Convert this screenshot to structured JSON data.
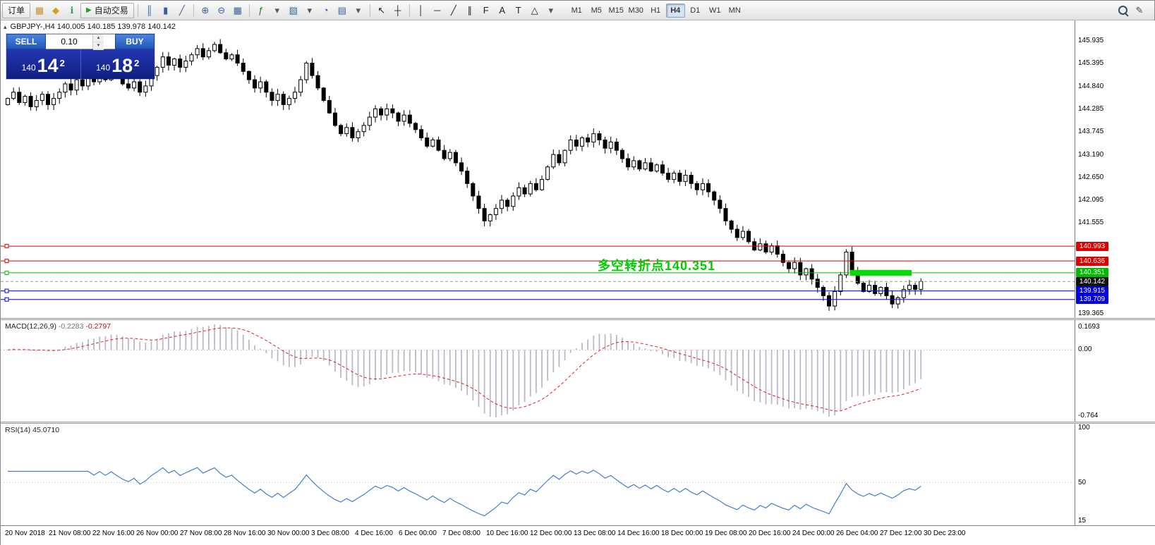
{
  "toolbar": {
    "new_order_label": "订单",
    "auto_trading_label": "自动交易",
    "pencil_glyph": "✎",
    "icons": [
      {
        "name": "charts-window-icon",
        "glyph": "▦",
        "color": "#c78f2f"
      },
      {
        "name": "profile-icon",
        "glyph": "◆",
        "color": "#d4a017"
      },
      {
        "name": "info-icon",
        "glyph": "ℹ",
        "color": "#2e9e4f"
      },
      {
        "name": "auto-trading-button",
        "type": "button",
        "glyph": "▶",
        "glyph_color": "#19a519"
      },
      {
        "type": "sep"
      },
      {
        "name": "bar-chart-icon",
        "glyph": "║",
        "color": "#35609e"
      },
      {
        "name": "candlestick-chart-icon",
        "glyph": "▮",
        "color": "#35609e"
      },
      {
        "name": "line-chart-icon",
        "glyph": "╱",
        "color": "#35609e"
      },
      {
        "type": "sep"
      },
      {
        "name": "zoom-in-icon",
        "glyph": "⊕",
        "color": "#35609e"
      },
      {
        "name": "zoom-out-icon",
        "glyph": "⊖",
        "color": "#35609e"
      },
      {
        "name": "tile-windows-icon",
        "glyph": "▦",
        "color": "#35609e"
      },
      {
        "type": "sep"
      },
      {
        "name": "indicators-icon",
        "glyph": "ƒ",
        "color": "#1a7a1a"
      },
      {
        "name": "indicators-dropdown-icon",
        "glyph": "▾",
        "color": "#555"
      },
      {
        "name": "new-chart-icon",
        "glyph": "▧",
        "color": "#35609e"
      },
      {
        "name": "new-chart-dropdown-icon",
        "glyph": "▾",
        "color": "#555"
      },
      {
        "name": "cycles-icon",
        "glyph": "◔",
        "color": "#35609e"
      },
      {
        "name": "templates-icon",
        "glyph": "▤",
        "color": "#35609e"
      },
      {
        "name": "templates-dropdown-icon",
        "glyph": "▾",
        "color": "#555"
      },
      {
        "type": "sep"
      },
      {
        "name": "cursor-icon",
        "glyph": "↖",
        "color": "#222"
      },
      {
        "name": "crosshair-icon",
        "glyph": "┼",
        "color": "#222"
      },
      {
        "type": "sep"
      },
      {
        "name": "vertical-line-icon",
        "glyph": "│",
        "color": "#222"
      },
      {
        "name": "horizontal-line-icon",
        "glyph": "─",
        "color": "#222"
      },
      {
        "name": "trendline-icon",
        "glyph": "╱",
        "color": "#222"
      },
      {
        "name": "channel-icon",
        "glyph": "∥",
        "color": "#222"
      },
      {
        "name": "fibonacci-icon",
        "glyph": "F",
        "color": "#222"
      },
      {
        "name": "text-icon",
        "glyph": "A",
        "color": "#222"
      },
      {
        "name": "label-icon",
        "glyph": "T",
        "color": "#222"
      },
      {
        "name": "shapes-icon",
        "glyph": "△",
        "color": "#222"
      },
      {
        "name": "shapes-dropdown-icon",
        "glyph": "▾",
        "color": "#555"
      }
    ],
    "timeframes": [
      "M1",
      "M5",
      "M15",
      "M30",
      "H1",
      "H4",
      "D1",
      "W1",
      "MN"
    ],
    "active_timeframe": "H4"
  },
  "chart": {
    "collapse_glyph": "▴",
    "header_text": "GBPJPY-,H4 140.005 140.185 139.978 140.142"
  },
  "trade_panel": {
    "sell_label": "SELL",
    "buy_label": "BUY",
    "lot_value": "0.10",
    "sell_price": {
      "prefix": "140",
      "big": "14",
      "sup": "2"
    },
    "buy_price": {
      "prefix": "140",
      "big": "18",
      "sup": "2"
    }
  },
  "price_axis": {
    "labels": [
      "145.935",
      "145.395",
      "144.840",
      "144.285",
      "143.745",
      "143.190",
      "142.650",
      "142.095",
      "141.555",
      "139.365"
    ]
  },
  "price_lines": [
    {
      "name": "resistance-line-1",
      "label": "140.993",
      "price": 140.993,
      "color": "#dd0000",
      "style": "solid"
    },
    {
      "name": "resistance-line-2",
      "label": "140.636",
      "price": 140.636,
      "color": "#dd0000",
      "style": "solid"
    },
    {
      "name": "pivot-line",
      "label": "140.351",
      "price": 140.351,
      "color": "#00bb00",
      "style": "solid"
    },
    {
      "name": "current-price-line",
      "label": "140.142",
      "price": 140.142,
      "color": "#999999",
      "badge_color": "#111111",
      "style": "dashed"
    },
    {
      "name": "support-line-1",
      "label": "139.915",
      "price": 139.915,
      "color": "#0000dd",
      "style": "solid"
    },
    {
      "name": "support-line-2",
      "label": "139.709",
      "price": 139.709,
      "color": "#0000dd",
      "style": "solid"
    }
  ],
  "macd": {
    "name": "MACD(12,26,9)",
    "value_main": "-0.2283",
    "value_signal": "-0.2797",
    "axis_labels": [
      "0.1693",
      "0.00",
      "-0.764"
    ],
    "params": {
      "fast": 12,
      "slow": 26,
      "signal": 9
    }
  },
  "rsi": {
    "name": "RSI(14)",
    "value": "45.0710",
    "axis_labels": [
      "100",
      "50",
      "15"
    ],
    "period": 14
  },
  "time_axis": {
    "labels": [
      "20 Nov 2018",
      "21 Nov 08:00",
      "22 Nov 16:00",
      "26 Nov 00:00",
      "27 Nov 08:00",
      "28 Nov 16:00",
      "30 Nov 00:00",
      "3 Dec 08:00",
      "4 Dec 16:00",
      "6 Dec 00:00",
      "7 Dec 08:00",
      "10 Dec 16:00",
      "12 Dec 00:00",
      "13 Dec 08:00",
      "14 Dec 16:00",
      "18 Dec 00:00",
      "19 Dec 08:00",
      "20 Dec 16:00",
      "24 Dec 00:00",
      "26 Dec 04:00",
      "27 Dec 12:00",
      "30 Dec 23:00"
    ]
  },
  "chart_data": {
    "type": "candlestick",
    "symbol": "GBPJPY-",
    "timeframe": "H4",
    "current_ohlc": {
      "open": 140.005,
      "high": 140.185,
      "low": 139.978,
      "close": 140.142
    },
    "first_open": 144.4,
    "closes": [
      144.55,
      144.7,
      144.45,
      144.6,
      144.35,
      144.5,
      144.65,
      144.4,
      144.55,
      144.7,
      144.9,
      144.75,
      145.0,
      144.85,
      145.1,
      144.95,
      145.15,
      145.0,
      145.2,
      145.05,
      144.9,
      144.8,
      144.95,
      144.7,
      144.85,
      145.1,
      145.3,
      145.55,
      145.35,
      145.5,
      145.3,
      145.45,
      145.6,
      145.75,
      145.55,
      145.7,
      145.85,
      145.65,
      145.5,
      145.6,
      145.4,
      145.2,
      145.0,
      144.8,
      144.95,
      144.7,
      144.5,
      144.65,
      144.4,
      144.55,
      144.7,
      145.0,
      145.4,
      145.1,
      144.8,
      144.5,
      144.2,
      143.9,
      143.7,
      143.85,
      143.6,
      143.75,
      143.9,
      144.1,
      144.3,
      144.15,
      144.3,
      144.2,
      144.0,
      144.15,
      143.95,
      143.8,
      143.6,
      143.4,
      143.55,
      143.3,
      143.1,
      143.25,
      143.0,
      142.8,
      142.5,
      142.2,
      141.9,
      141.6,
      141.75,
      141.9,
      142.1,
      141.95,
      142.2,
      142.4,
      142.25,
      142.5,
      142.35,
      142.6,
      142.9,
      143.2,
      143.0,
      143.3,
      143.55,
      143.4,
      143.6,
      143.5,
      143.7,
      143.55,
      143.35,
      143.5,
      143.3,
      143.1,
      142.9,
      143.05,
      142.85,
      143.0,
      142.8,
      142.95,
      142.75,
      142.6,
      142.75,
      142.55,
      142.7,
      142.5,
      142.35,
      142.5,
      142.3,
      142.1,
      141.9,
      141.6,
      141.4,
      141.2,
      141.35,
      141.1,
      140.9,
      141.05,
      140.85,
      141.0,
      140.8,
      140.6,
      140.45,
      140.6,
      140.3,
      140.45,
      140.2,
      140.0,
      139.8,
      139.55,
      139.9,
      140.3,
      140.85,
      140.4,
      140.1,
      139.9,
      140.05,
      139.85,
      140.0,
      139.8,
      139.6,
      139.75,
      139.95,
      140.05,
      139.95,
      140.142
    ],
    "highlight_rect": {
      "start_index": 147,
      "end_index": 157,
      "price": 140.351,
      "color": "#00dd00"
    },
    "annotation": {
      "text": "多空转折点140.351",
      "color": "#00cc00"
    }
  }
}
